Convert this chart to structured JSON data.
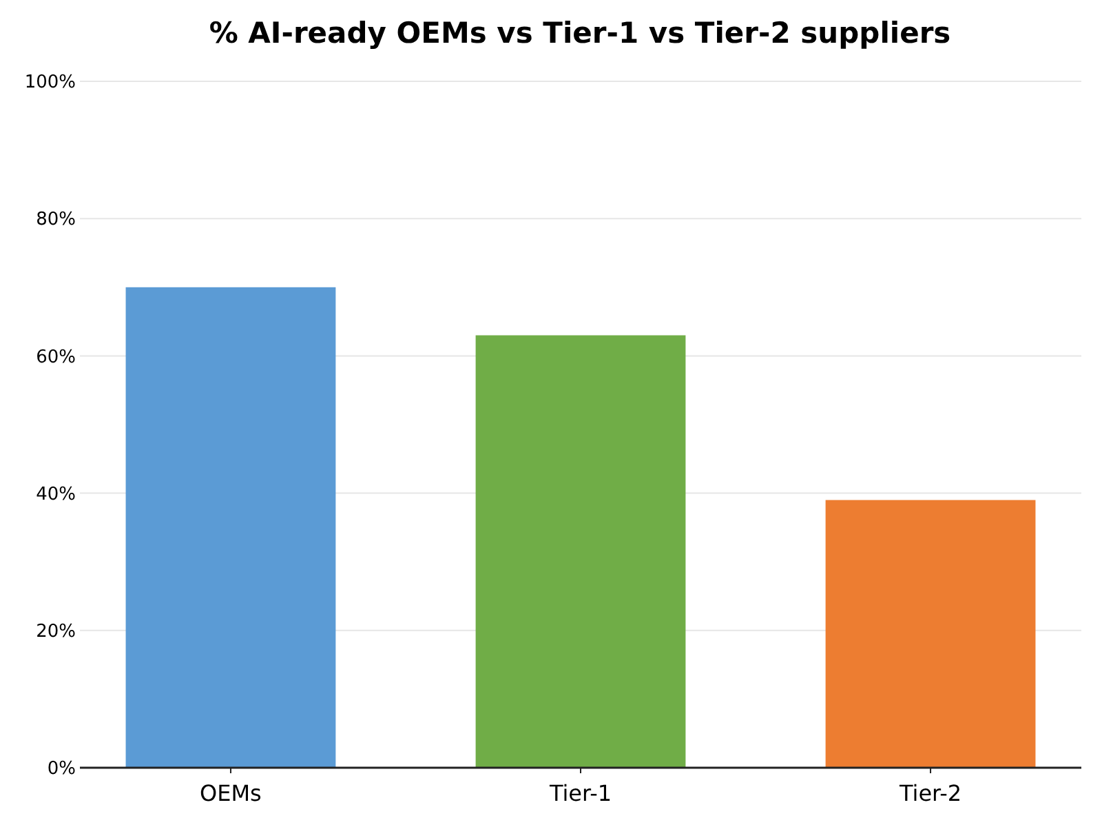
{
  "chart_data": {
    "type": "bar",
    "title": "% AI-ready OEMs vs Tier-1 vs Tier-2 suppliers",
    "categories": [
      "OEMs",
      "Tier-1",
      "Tier-2"
    ],
    "values": [
      70,
      63,
      39
    ],
    "colors": [
      "#5b9bd5",
      "#70ad47",
      "#ed7d31"
    ],
    "ylim": [
      0,
      100
    ],
    "yticks": [
      {
        "value": 0,
        "label": "0%"
      },
      {
        "value": 20,
        "label": "20%"
      },
      {
        "value": 40,
        "label": "40%"
      },
      {
        "value": 60,
        "label": "60%"
      },
      {
        "value": 80,
        "label": "80%"
      },
      {
        "value": 100,
        "label": "100%"
      }
    ],
    "grid": "y"
  }
}
